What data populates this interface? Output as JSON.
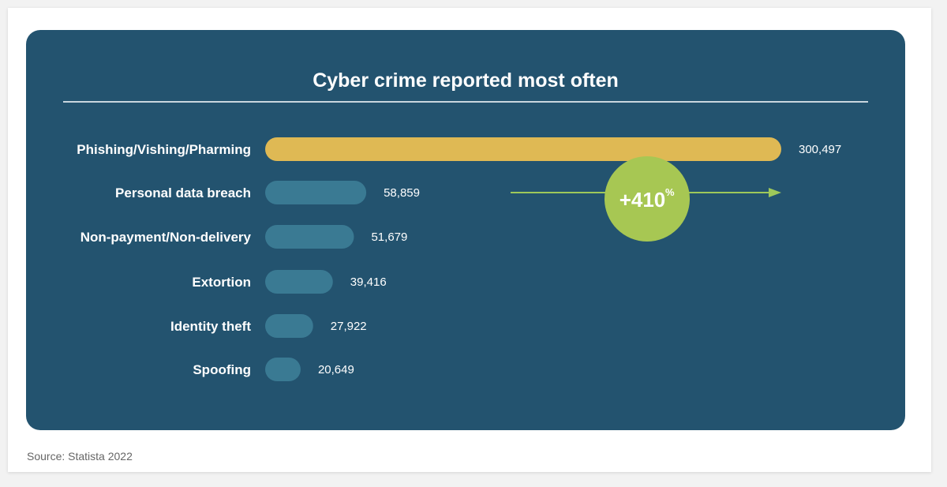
{
  "source": "Source: Statista 2022",
  "colors": {
    "panel_bg": "#23536f",
    "highlight_bar": "#dfb954",
    "bar": "#3a7a93",
    "badge": "#a7c753",
    "arrow": "#9ec85a",
    "text": "#ffffff"
  },
  "chart_data": {
    "type": "bar",
    "orientation": "horizontal",
    "title": "Cyber crime reported most often",
    "categories": [
      "Phishing/Vishing/Pharming",
      "Personal data breach",
      "Non-payment/Non-delivery",
      "Extortion",
      "Identity theft",
      "Spoofing"
    ],
    "values": [
      300497,
      58859,
      51679,
      39416,
      27922,
      20649
    ],
    "value_labels": [
      "300,497",
      "58,859",
      "51,679",
      "39,416",
      "27,922",
      "20,649"
    ],
    "highlight_index": 0,
    "annotation": {
      "from_category": "Personal data breach",
      "to_category": "Phishing/Vishing/Pharming",
      "label": "+410",
      "unit": "%"
    },
    "grid": false,
    "legend": "none"
  }
}
